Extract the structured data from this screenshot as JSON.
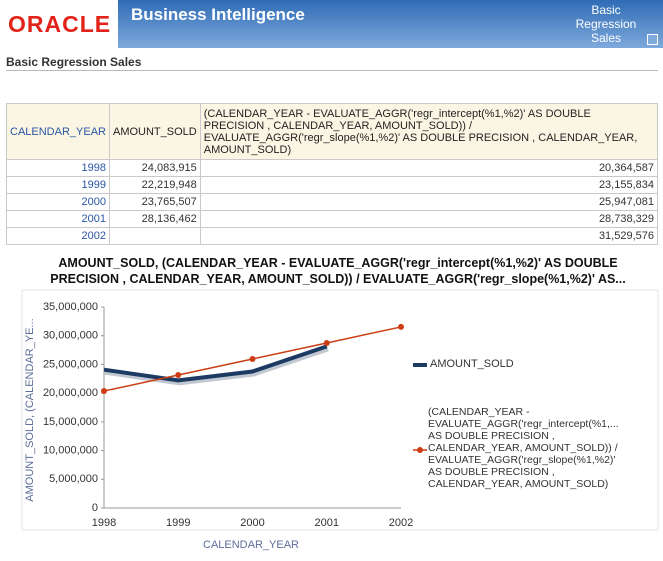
{
  "header": {
    "logo": "ORACLE",
    "title": "Business Intelligence",
    "tab": "Basic Regression Sales"
  },
  "section_title": "Basic Regression Sales",
  "table": {
    "columns": [
      "CALENDAR_YEAR",
      "AMOUNT_SOLD",
      "(CALENDAR_YEAR - EVALUATE_AGGR('regr_intercept(%1,%2)' AS DOUBLE PRECISION , CALENDAR_YEAR, AMOUNT_SOLD)) / EVALUATE_AGGR('regr_slope(%1,%2)' AS DOUBLE PRECISION , CALENDAR_YEAR, AMOUNT_SOLD)"
    ],
    "rows": [
      [
        "1998",
        "24,083,915",
        "20,364,587"
      ],
      [
        "1999",
        "22,219,948",
        "23,155,834"
      ],
      [
        "2000",
        "23,765,507",
        "25,947,081"
      ],
      [
        "2001",
        "28,136,462",
        "28,738,329"
      ],
      [
        "2002",
        null,
        "31,529,576"
      ]
    ]
  },
  "chart_data": {
    "type": "line",
    "title": "AMOUNT_SOLD, (CALENDAR_YEAR - EVALUATE_AGGR('regr_intercept(%1,%2)' AS DOUBLE PRECISION , CALENDAR_YEAR, AMOUNT_SOLD)) / EVALUATE_AGGR('regr_slope(%1,%2)' AS...",
    "x_label": "CALENDAR_YEAR",
    "y_label": "AMOUNT_SOLD, (CALENDAR_YE...",
    "categories": [
      "1998",
      "1999",
      "2000",
      "2001",
      "2002"
    ],
    "series": [
      {
        "name": "AMOUNT_SOLD",
        "color": "#1d3a63",
        "values": [
          24083915,
          22219948,
          23765507,
          28136462,
          null
        ]
      },
      {
        "name": "(CALENDAR_YEAR - EVALUATE_AGGR('regr_intercept(%1,... AS DOUBLE PRECISION , CALENDAR_YEAR, AMOUNT_SOLD)) / EVALUATE_AGGR('regr_slope(%1,%2)' AS DOUBLE PRECISION , CALENDAR_YEAR, AMOUNT_SOLD)",
        "color": "#cc3d14",
        "values": [
          20364587,
          23155834,
          25947081,
          28738329,
          31529576
        ]
      }
    ],
    "ylim": [
      0,
      35000000
    ],
    "yticks": [
      0,
      {
        "value": 5000000,
        "label": "5,000,000"
      },
      {
        "value": 10000000,
        "label": "10,000,000"
      },
      {
        "value": 15000000,
        "label": "15,000,000"
      },
      {
        "value": 20000000,
        "label": "20,000,000"
      },
      {
        "value": 25000000,
        "label": "25,000,000"
      },
      {
        "value": 30000000,
        "label": "30,000,000"
      },
      {
        "value": 35000000,
        "label": "35,000,000"
      }
    ],
    "grid": false
  }
}
